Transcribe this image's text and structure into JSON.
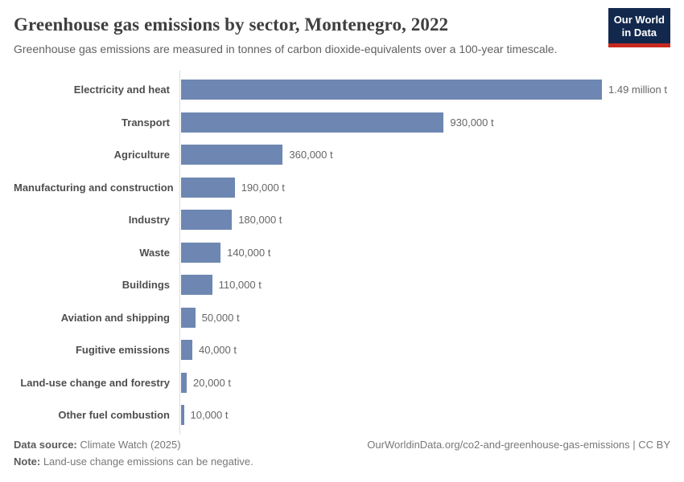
{
  "header": {
    "title": "Greenhouse gas emissions by sector, Montenegro, 2022",
    "subtitle": "Greenhouse gas emissions are measured in tonnes of carbon dioxide-equivalents over a 100-year timescale.",
    "logo": {
      "line1": "Our World",
      "line2": "in Data"
    }
  },
  "chart_data": {
    "type": "bar",
    "orientation": "horizontal",
    "title": "Greenhouse gas emissions by sector, Montenegro, 2022",
    "xlabel": "",
    "ylabel": "",
    "unit": "t",
    "xlim": [
      0,
      1490000
    ],
    "grid": false,
    "legend": false,
    "bar_color": "#6e87b2",
    "categories": [
      "Electricity and heat",
      "Transport",
      "Agriculture",
      "Manufacturing and construction",
      "Industry",
      "Waste",
      "Buildings",
      "Aviation and shipping",
      "Fugitive emissions",
      "Land-use change and forestry",
      "Other fuel combustion"
    ],
    "values": [
      1490000,
      930000,
      360000,
      190000,
      180000,
      140000,
      110000,
      50000,
      40000,
      20000,
      10000
    ],
    "value_labels": [
      "1.49 million t",
      "930,000 t",
      "360,000 t",
      "190,000 t",
      "180,000 t",
      "140,000 t",
      "110,000 t",
      "50,000 t",
      "40,000 t",
      "20,000 t",
      "10,000 t"
    ]
  },
  "footer": {
    "data_source_label": "Data source:",
    "data_source": " Climate Watch (2025)",
    "note_label": "Note:",
    "note": " Land-use change emissions can be negative.",
    "url": "OurWorldinData.org/co2-and-greenhouse-gas-emissions | CC BY"
  }
}
